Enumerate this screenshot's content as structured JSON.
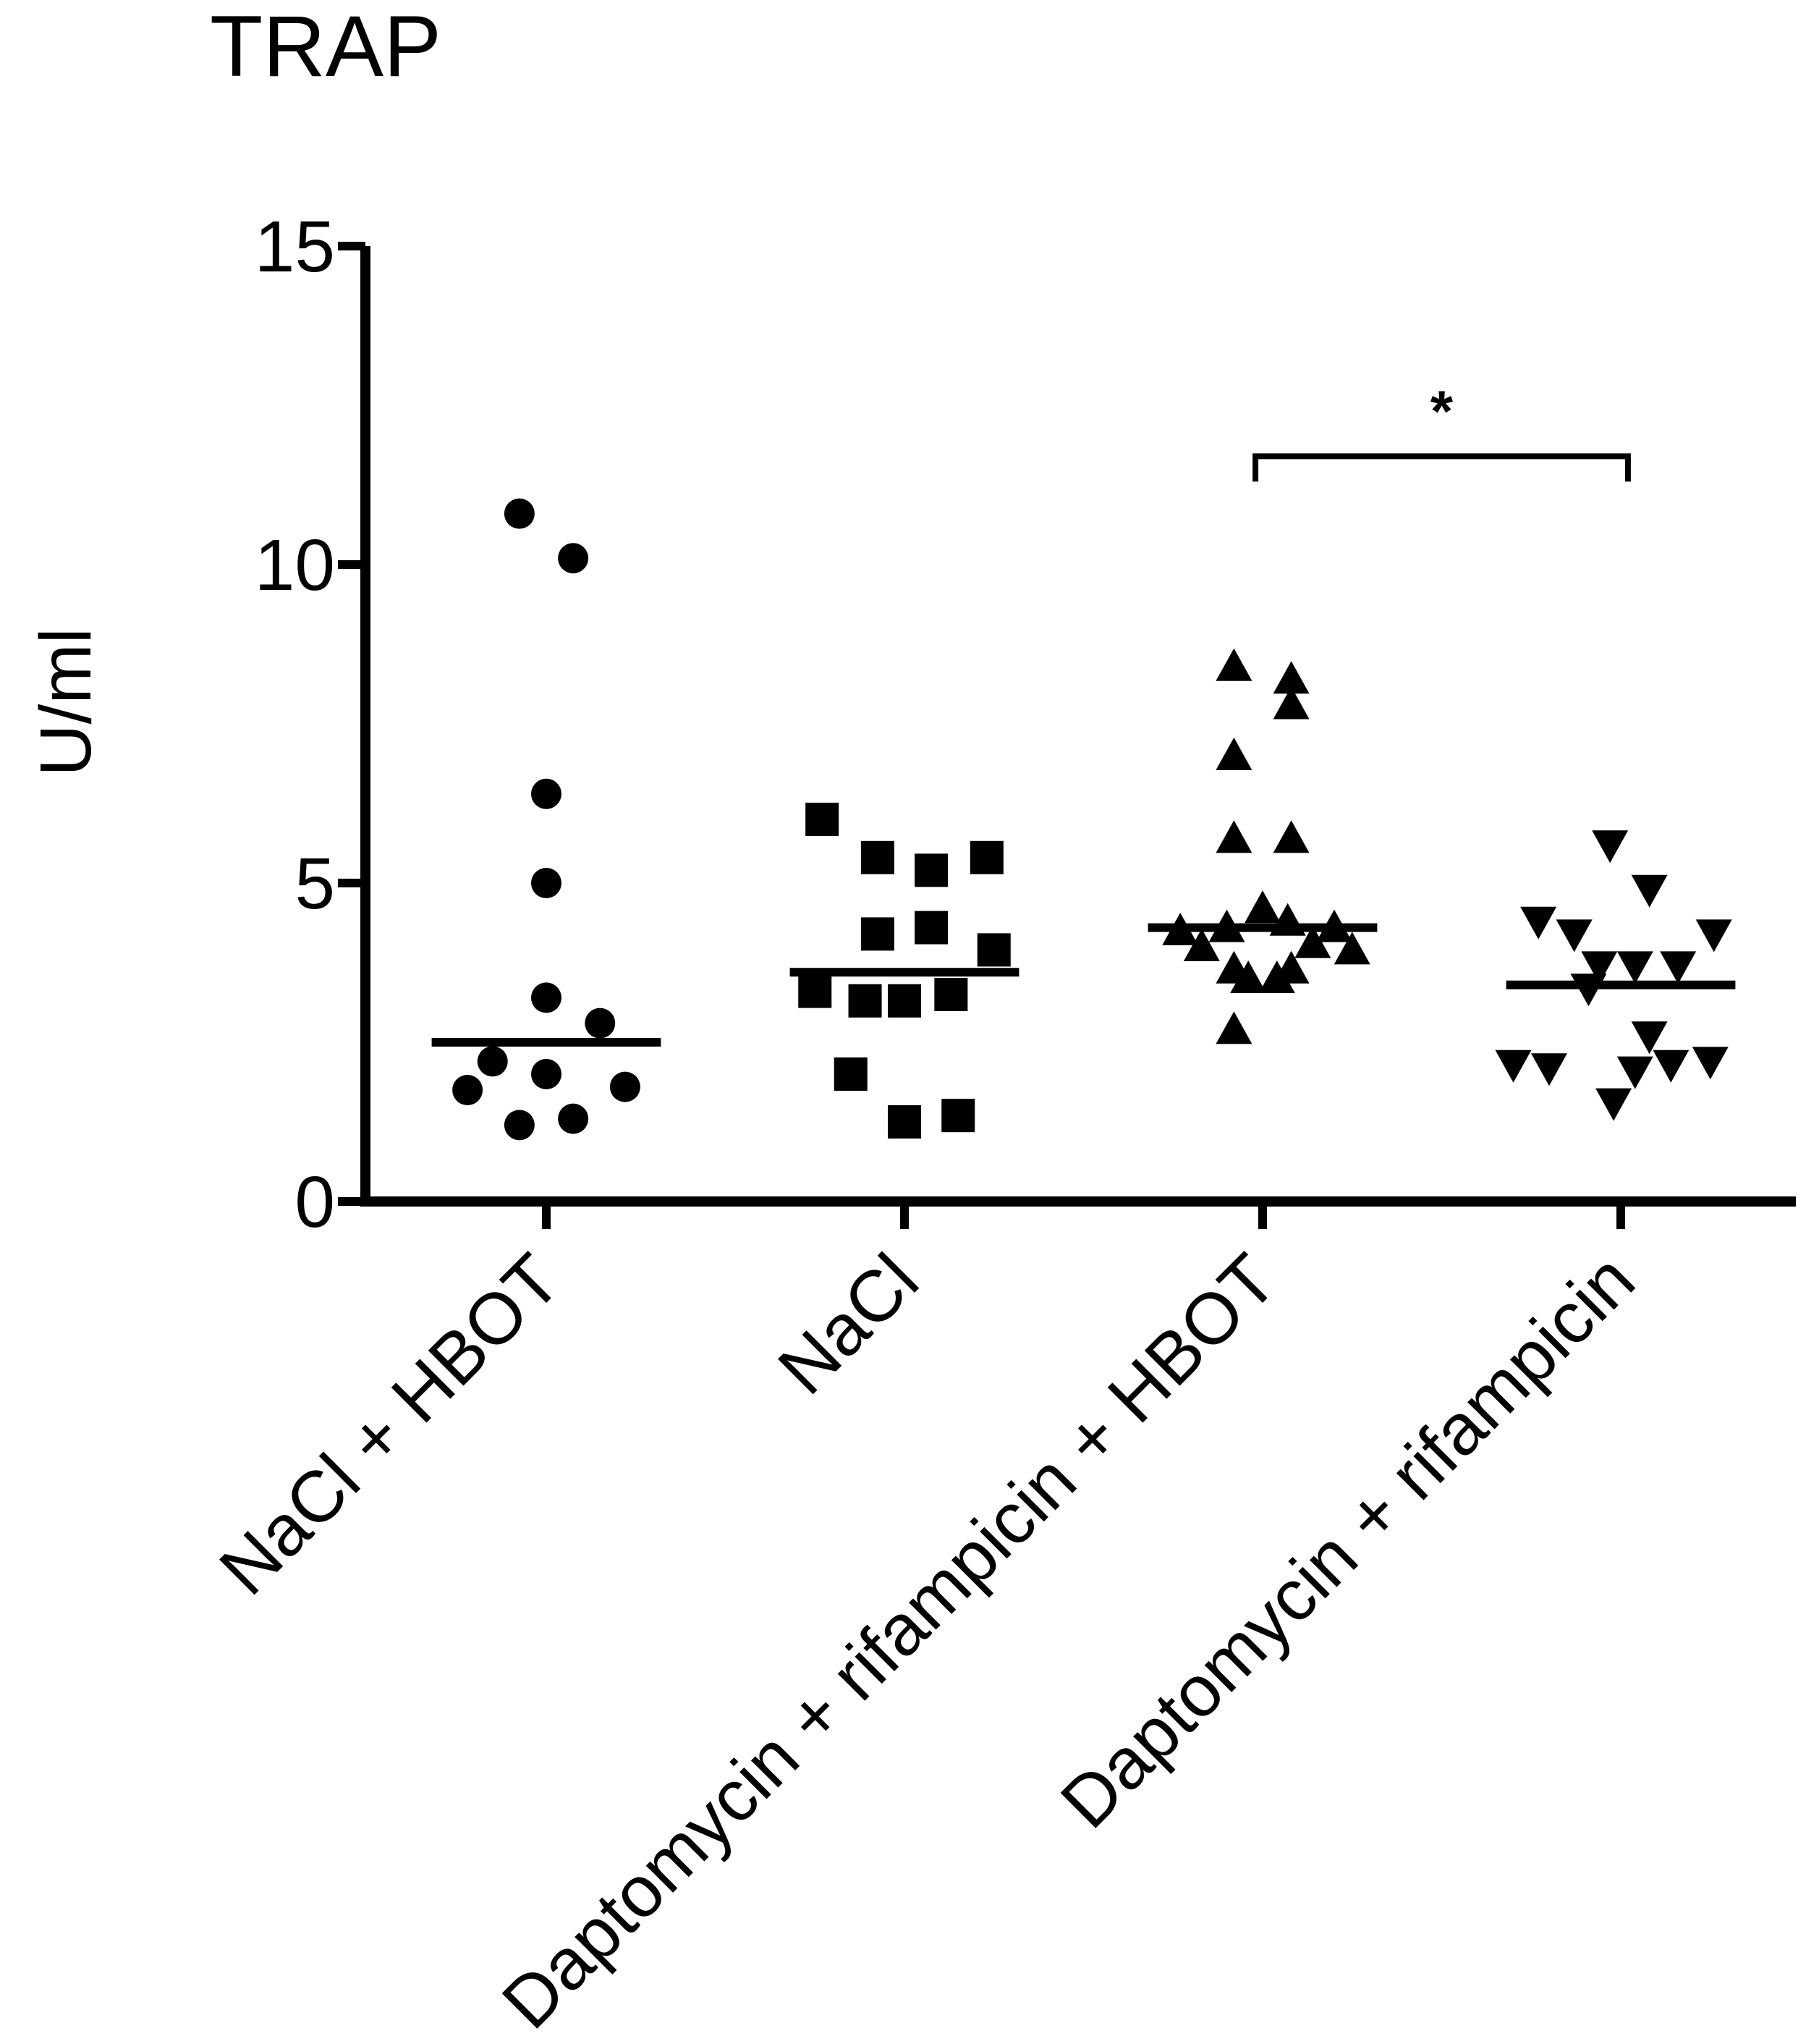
{
  "chart_data": {
    "type": "scatter",
    "title": "TRAP",
    "ylabel": "U/ml",
    "xlabel": "",
    "ylim": [
      0,
      15
    ],
    "yticks": [
      0,
      5,
      10,
      15
    ],
    "grid": false,
    "legend": "none",
    "categories": [
      "NaCl + HBOT",
      "NaCl",
      "Daptomycin + rifampicin + HBOT",
      "Daptomycin +  rifampicin"
    ],
    "series": [
      {
        "marker": "circle",
        "mean": 2.5,
        "points": [
          {
            "offset": -0.075,
            "value": 10.8
          },
          {
            "offset": 0.075,
            "value": 10.1
          },
          {
            "offset": 0.0,
            "value": 6.4
          },
          {
            "offset": 0.0,
            "value": 5.0
          },
          {
            "offset": 0.0,
            "value": 3.2
          },
          {
            "offset": 0.15,
            "value": 2.8
          },
          {
            "offset": -0.15,
            "value": 2.2
          },
          {
            "offset": 0.0,
            "value": 2.0
          },
          {
            "offset": -0.22,
            "value": 1.75
          },
          {
            "offset": 0.22,
            "value": 1.8
          },
          {
            "offset": 0.075,
            "value": 1.3
          },
          {
            "offset": -0.075,
            "value": 1.2
          }
        ]
      },
      {
        "marker": "square",
        "mean": 3.6,
        "points": [
          {
            "offset": -0.23,
            "value": 6.0
          },
          {
            "offset": -0.075,
            "value": 5.4
          },
          {
            "offset": 0.075,
            "value": 5.2
          },
          {
            "offset": 0.23,
            "value": 5.4
          },
          {
            "offset": -0.075,
            "value": 4.2
          },
          {
            "offset": 0.075,
            "value": 4.3
          },
          {
            "offset": 0.25,
            "value": 3.95
          },
          {
            "offset": -0.25,
            "value": 3.3
          },
          {
            "offset": -0.11,
            "value": 3.15
          },
          {
            "offset": 0.0,
            "value": 3.15
          },
          {
            "offset": 0.13,
            "value": 3.25
          },
          {
            "offset": -0.15,
            "value": 2.0
          },
          {
            "offset": 0.0,
            "value": 1.25
          },
          {
            "offset": 0.15,
            "value": 1.35
          }
        ]
      },
      {
        "marker": "triangle-up",
        "mean": 4.3,
        "points": [
          {
            "offset": -0.08,
            "value": 8.4
          },
          {
            "offset": 0.08,
            "value": 8.2
          },
          {
            "offset": 0.08,
            "value": 7.8
          },
          {
            "offset": -0.08,
            "value": 7.0
          },
          {
            "offset": -0.08,
            "value": 5.7
          },
          {
            "offset": 0.08,
            "value": 5.7
          },
          {
            "offset": 0.0,
            "value": 4.6
          },
          {
            "offset": -0.23,
            "value": 4.25
          },
          {
            "offset": -0.1,
            "value": 4.3
          },
          {
            "offset": 0.07,
            "value": 4.4
          },
          {
            "offset": 0.2,
            "value": 4.3
          },
          {
            "offset": -0.17,
            "value": 4.0
          },
          {
            "offset": 0.14,
            "value": 4.05
          },
          {
            "offset": 0.25,
            "value": 3.95
          },
          {
            "offset": -0.08,
            "value": 3.65
          },
          {
            "offset": 0.08,
            "value": 3.65
          },
          {
            "offset": -0.04,
            "value": 3.5
          },
          {
            "offset": 0.04,
            "value": 3.5
          },
          {
            "offset": -0.08,
            "value": 2.7
          }
        ]
      },
      {
        "marker": "triangle-down",
        "mean": 3.4,
        "points": [
          {
            "offset": -0.03,
            "value": 5.6
          },
          {
            "offset": 0.08,
            "value": 4.9
          },
          {
            "offset": -0.23,
            "value": 4.4
          },
          {
            "offset": -0.13,
            "value": 4.2
          },
          {
            "offset": 0.26,
            "value": 4.2
          },
          {
            "offset": -0.06,
            "value": 3.7
          },
          {
            "offset": 0.04,
            "value": 3.7
          },
          {
            "offset": 0.16,
            "value": 3.7
          },
          {
            "offset": -0.09,
            "value": 3.35
          },
          {
            "offset": 0.08,
            "value": 2.6
          },
          {
            "offset": -0.3,
            "value": 2.15
          },
          {
            "offset": -0.2,
            "value": 2.1
          },
          {
            "offset": 0.04,
            "value": 2.05
          },
          {
            "offset": 0.14,
            "value": 2.15
          },
          {
            "offset": 0.25,
            "value": 2.2
          },
          {
            "offset": -0.02,
            "value": 1.55
          }
        ]
      }
    ],
    "annotations": [
      {
        "type": "bracket",
        "from": 2,
        "to": 3,
        "y": 11.7,
        "label": "*"
      }
    ]
  }
}
